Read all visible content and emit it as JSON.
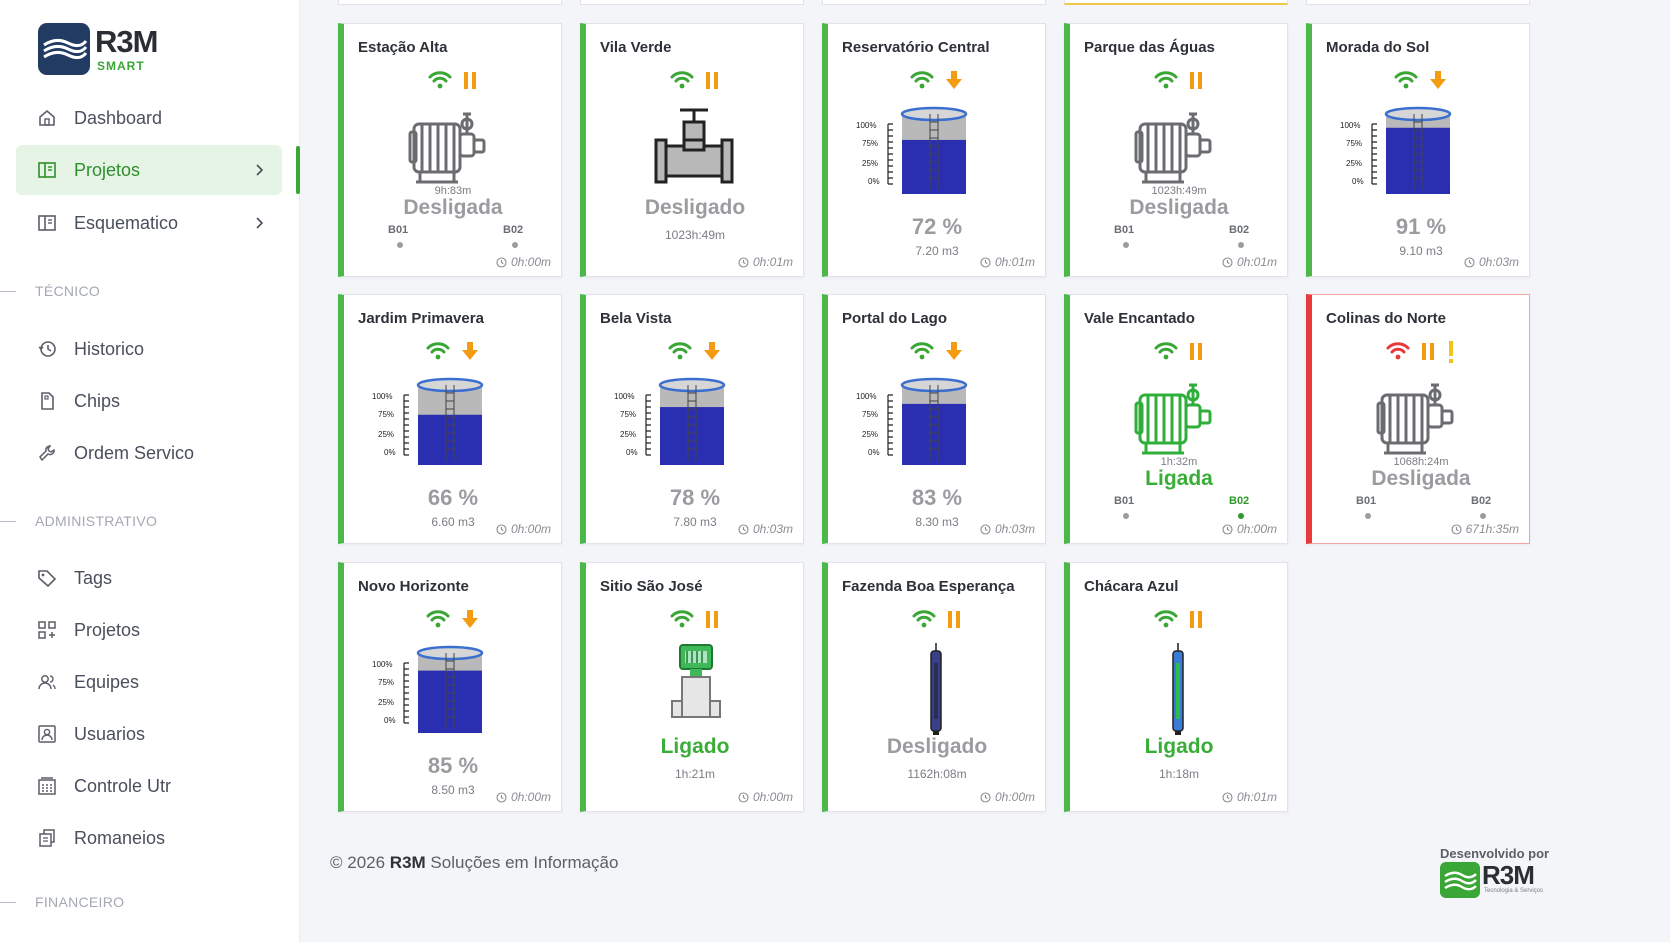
{
  "brand": {
    "name": "R3M",
    "sub": "SMART"
  },
  "nav": {
    "dashboard": "Dashboard",
    "projetos": "Projetos",
    "esquematico": "Esquematico",
    "section_tecnico": "TÉCNICO",
    "historico": "Historico",
    "chips": "Chips",
    "ordem": "Ordem Servico",
    "section_admin": "ADMINISTRATIVO",
    "tags": "Tags",
    "projetos2": "Projetos",
    "equipes": "Equipes",
    "usuarios": "Usuarios",
    "controle": "Controle Utr",
    "romaneios": "Romaneios",
    "section_fin": "FINANCEIRO"
  },
  "cards": [
    {
      "title": "Estação Alta",
      "type": "pump",
      "state": "Desligada",
      "runtime": "9h:83m",
      "b1": "B01",
      "b2": "B02",
      "time": "0h:00m"
    },
    {
      "title": "Vila Verde",
      "type": "valve",
      "state": "Desligado",
      "runtime": "1023h:49m",
      "time": "0h:01m"
    },
    {
      "title": "Reservatório Central",
      "type": "tank",
      "pct": "72 %",
      "level": 72,
      "volume": "7.20 m3",
      "time": "0h:01m"
    },
    {
      "title": "Parque das Águas",
      "type": "pump",
      "state": "Desligada",
      "runtime": "1023h:49m",
      "b1": "B01",
      "b2": "B02",
      "time": "0h:01m"
    },
    {
      "title": "Morada do Sol",
      "type": "tank",
      "pct": "91 %",
      "level": 91,
      "volume": "9.10 m3",
      "time": "0h:03m"
    },
    {
      "title": "Jardim Primavera",
      "type": "tank",
      "pct": "66 %",
      "level": 66,
      "volume": "6.60 m3",
      "time": "0h:00m"
    },
    {
      "title": "Bela Vista",
      "type": "tank",
      "pct": "78 %",
      "level": 78,
      "volume": "7.80 m3",
      "time": "0h:03m"
    },
    {
      "title": "Portal do Lago",
      "type": "tank",
      "pct": "83 %",
      "level": 83,
      "volume": "8.30 m3",
      "time": "0h:03m"
    },
    {
      "title": "Vale Encantado",
      "type": "pump-on",
      "state": "Ligada",
      "runtime": "1h:32m",
      "b1": "B01",
      "b2": "B02",
      "time": "0h:00m"
    },
    {
      "title": "Colinas do Norte",
      "type": "pump",
      "state": "Desligada",
      "runtime": "1068h:24m",
      "b1": "B01",
      "b2": "B02",
      "time": "671h:35m"
    },
    {
      "title": "Novo Horizonte",
      "type": "tank",
      "pct": "85 %",
      "level": 85,
      "volume": "8.50 m3",
      "time": "0h:00m"
    },
    {
      "title": "Sitio São José",
      "type": "meter",
      "state": "Ligado",
      "runtime": "1h:21m",
      "time": "0h:00m"
    },
    {
      "title": "Fazenda Boa Esperança",
      "type": "well",
      "state": "Desligado",
      "runtime": "1162h:08m",
      "time": "0h:00m"
    },
    {
      "title": "Chácara Azul",
      "type": "well-on",
      "state": "Ligado",
      "runtime": "1h:18m",
      "time": "0h:01m"
    }
  ],
  "scale": {
    "t100": "100%",
    "t75": "75%",
    "t25": "25%",
    "t0": "0%"
  },
  "footer": {
    "copy": "© 2026 ",
    "brand": "R3M",
    "rest": " Soluções em Informação"
  },
  "dev": {
    "label": "Desenvolvido por",
    "name": "R3M",
    "sub": "Tecnologia & Serviços"
  },
  "colors": {
    "green": "#3aa635",
    "red": "#e83a3a",
    "orange": "#f39c12",
    "water": "#2a2eb0"
  }
}
